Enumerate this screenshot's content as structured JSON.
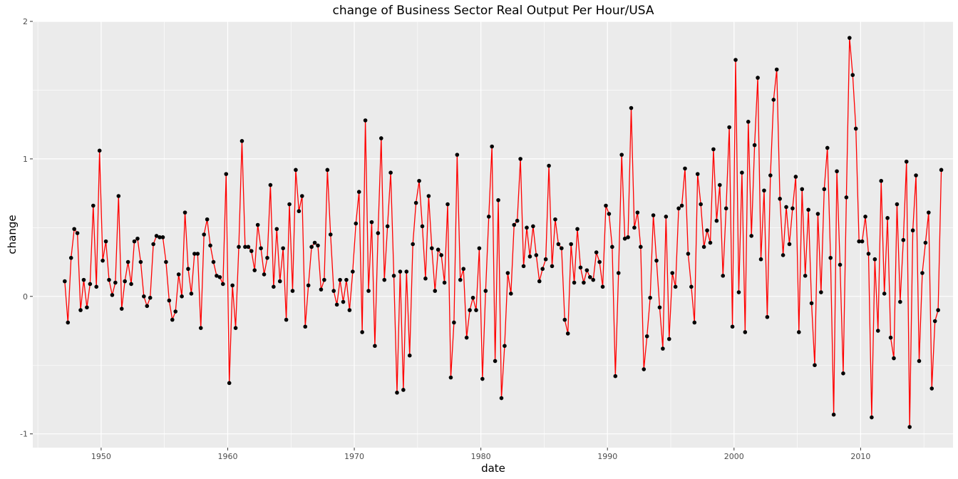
{
  "chart_data": {
    "type": "line",
    "title": "change of Business Sector  Real Output Per Hour/USA",
    "xlabel": "date",
    "ylabel": "change",
    "x_ticks": [
      "1950",
      "1960",
      "1970",
      "1980",
      "1990",
      "2000",
      "2010"
    ],
    "y_ticks": [
      "-1",
      "0",
      "1",
      "2"
    ],
    "xlim": [
      1944.6,
      2017.3
    ],
    "ylim": [
      -1.1,
      2.0
    ],
    "grid": true,
    "colors": {
      "line": "#ff0000",
      "point": "#000000",
      "panel": "#ebebeb",
      "grid": "#ffffff"
    },
    "x_start": 1947.125,
    "x_step": 0.25,
    "values": [
      0.11,
      -0.19,
      0.28,
      0.49,
      0.46,
      -0.1,
      0.12,
      -0.08,
      0.09,
      0.66,
      0.07,
      1.06,
      0.26,
      0.4,
      0.12,
      0.01,
      0.1,
      0.73,
      -0.09,
      0.11,
      0.25,
      0.09,
      0.4,
      0.42,
      0.25,
      0.0,
      -0.07,
      -0.01,
      0.38,
      0.44,
      0.43,
      0.43,
      0.25,
      -0.03,
      -0.17,
      -0.11,
      0.16,
      0.0,
      0.61,
      0.2,
      0.02,
      0.31,
      0.31,
      -0.23,
      0.45,
      0.56,
      0.37,
      0.25,
      0.15,
      0.14,
      0.09,
      0.89,
      -0.63,
      0.08,
      -0.23,
      0.36,
      1.13,
      0.36,
      0.36,
      0.33,
      0.19,
      0.52,
      0.35,
      0.16,
      0.28,
      0.81,
      0.07,
      0.49,
      0.11,
      0.35,
      -0.17,
      0.67,
      0.04,
      0.92,
      0.62,
      0.73,
      -0.22,
      0.08,
      0.36,
      0.39,
      0.37,
      0.05,
      0.12,
      0.92,
      0.45,
      0.04,
      -0.06,
      0.12,
      -0.04,
      0.12,
      -0.1,
      0.18,
      0.53,
      0.76,
      -0.26,
      1.28,
      0.04,
      0.54,
      -0.36,
      0.46,
      1.15,
      0.12,
      0.51,
      0.9,
      0.15,
      -0.7,
      0.18,
      -0.68,
      0.18,
      -0.43,
      0.38,
      0.68,
      0.84,
      0.51,
      0.13,
      0.73,
      0.35,
      0.04,
      0.34,
      0.3,
      0.1,
      0.67,
      -0.59,
      -0.19,
      1.03,
      0.12,
      0.2,
      -0.3,
      -0.1,
      -0.01,
      -0.1,
      0.35,
      -0.6,
      0.04,
      0.58,
      1.09,
      -0.47,
      0.7,
      -0.74,
      -0.36,
      0.17,
      0.02,
      0.52,
      0.55,
      1.0,
      0.22,
      0.5,
      0.29,
      0.51,
      0.3,
      0.11,
      0.2,
      0.27,
      0.95,
      0.22,
      0.56,
      0.38,
      0.35,
      -0.17,
      -0.27,
      0.38,
      0.1,
      0.49,
      0.21,
      0.1,
      0.19,
      0.14,
      0.12,
      0.32,
      0.25,
      0.07,
      0.66,
      0.6,
      0.36,
      -0.58,
      0.17,
      1.03,
      0.42,
      0.43,
      1.37,
      0.5,
      0.61,
      0.36,
      -0.53,
      -0.29,
      -0.01,
      0.59,
      0.26,
      -0.08,
      -0.38,
      0.58,
      -0.31,
      0.17,
      0.07,
      0.64,
      0.66,
      0.93,
      0.31,
      0.07,
      -0.19,
      0.89,
      0.67,
      0.36,
      0.48,
      0.39,
      1.07,
      0.55,
      0.81,
      0.15,
      0.64,
      1.23,
      -0.22,
      1.72,
      0.03,
      0.9,
      -0.26,
      1.27,
      0.44,
      1.1,
      1.59,
      0.27,
      0.77,
      -0.15,
      0.88,
      1.43,
      1.65,
      0.71,
      0.3,
      0.65,
      0.38,
      0.64,
      0.87,
      -0.26,
      0.78,
      0.15,
      0.63,
      -0.05,
      -0.5,
      0.6,
      0.03,
      0.78,
      1.08,
      0.28,
      -0.86,
      0.91,
      0.23,
      -0.56,
      0.72,
      1.88,
      1.61,
      1.22,
      0.4,
      0.4,
      0.58,
      0.31,
      -0.88,
      0.27,
      -0.25,
      0.84,
      0.02,
      0.57,
      -0.3,
      -0.45,
      0.67,
      -0.04,
      0.41,
      0.98,
      -0.95,
      0.48,
      0.88,
      -0.47,
      0.17,
      0.39,
      0.61,
      -0.67,
      -0.18,
      -0.1,
      0.92
    ]
  }
}
